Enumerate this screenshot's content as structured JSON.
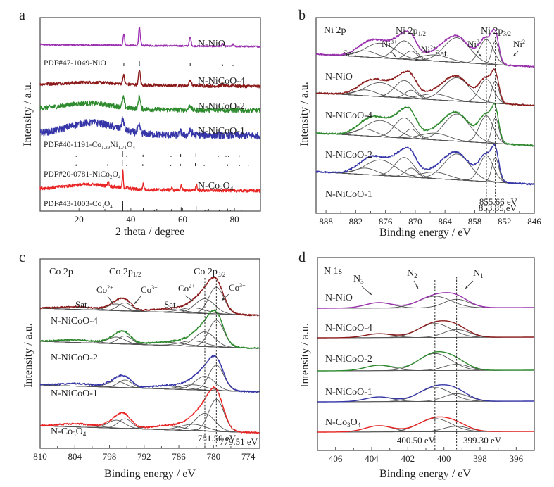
{
  "figure": {
    "panels": [
      "a",
      "b",
      "c",
      "d"
    ]
  },
  "chart_data": [
    {
      "panel": "a",
      "type": "line",
      "title": "",
      "xlabel": "2 theta / degree",
      "ylabel": "Intensity / a.u.",
      "xlim": [
        5,
        90
      ],
      "xticks": [
        20,
        40,
        60,
        80
      ],
      "x_reversed": false,
      "grid": false,
      "colors": {
        "N-NiO": "#9b30b0",
        "N-NiCoO-4": "#8b1a1a",
        "N-NiCoO-2": "#2e8b2e",
        "N-NiCoO-1": "#3636a8",
        "N-Co3O4": "#e82424"
      },
      "series": [
        {
          "name": "N-NiO",
          "label": "N-NiO",
          "color": "#9b30b0",
          "baseline": 0.86,
          "noise": 0.004,
          "hump": {
            "center": 25,
            "width": 10,
            "height": 0.0
          },
          "peaks": [
            [
              37.3,
              0.06,
              0.6
            ],
            [
              43.3,
              0.095,
              0.6
            ],
            [
              44.0,
              0.01,
              0.3
            ],
            [
              51.8,
              0.004,
              0.4
            ],
            [
              62.9,
              0.045,
              0.7
            ],
            [
              75.4,
              0.012,
              0.7
            ],
            [
              79.4,
              0.01,
              0.6
            ]
          ]
        },
        {
          "name": "N-NiCoO-4",
          "label": "N-NiCoO-4",
          "color": "#8b1a1a",
          "baseline": 0.655,
          "noise": 0.008,
          "hump": {
            "center": 25,
            "width": 10,
            "height": 0.012
          },
          "peaks": [
            [
              37.2,
              0.045,
              0.7
            ],
            [
              43.3,
              0.075,
              0.7
            ],
            [
              62.9,
              0.03,
              0.8
            ],
            [
              75.3,
              0.01,
              0.8
            ],
            [
              79.3,
              0.008,
              0.7
            ]
          ]
        },
        {
          "name": "N-NiCoO-2",
          "label": "N-NiCoO-2",
          "color": "#2e8b2e",
          "baseline": 0.53,
          "noise": 0.012,
          "hump": {
            "center": 24,
            "width": 9,
            "height": 0.03
          },
          "peaks": [
            [
              37.1,
              0.05,
              0.8
            ],
            [
              43.3,
              0.065,
              0.8
            ],
            [
              62.8,
              0.022,
              0.9
            ],
            [
              75.2,
              0.008,
              0.8
            ]
          ]
        },
        {
          "name": "N-NiCoO-1",
          "label": "N-NiCoO-1",
          "color": "#3636a8",
          "baseline": 0.4,
          "noise": 0.018,
          "hump": {
            "center": 25,
            "width": 9,
            "height": 0.06
          },
          "peaks": [
            [
              36.9,
              0.055,
              0.9
            ],
            [
              43.2,
              0.035,
              1.0
            ],
            [
              59.2,
              0.015,
              0.8
            ],
            [
              63.0,
              0.02,
              1.2
            ]
          ]
        },
        {
          "name": "N-Co3O4",
          "label": "N-Co3O4",
          "color": "#e82424",
          "baseline": 0.115,
          "noise": 0.008,
          "hump": {
            "center": 24,
            "width": 9,
            "height": 0.025
          },
          "peaks": [
            [
              19.0,
              0.004,
              0.4
            ],
            [
              31.3,
              0.025,
              0.5
            ],
            [
              36.9,
              0.09,
              0.4
            ],
            [
              38.6,
              0.006,
              0.4
            ],
            [
              44.8,
              0.028,
              0.5
            ],
            [
              55.7,
              0.01,
              0.5
            ],
            [
              59.4,
              0.025,
              0.5
            ],
            [
              65.3,
              0.03,
              0.5
            ],
            [
              77.4,
              0.006,
              0.5
            ]
          ]
        }
      ],
      "reference_patterns": [
        {
          "label": "PDF#47-1049-NiO",
          "lines": [
            [
              37.3,
              0.6
            ],
            [
              43.3,
              1.0
            ],
            [
              62.9,
              0.5
            ],
            [
              75.4,
              0.3
            ],
            [
              79.4,
              0.25
            ]
          ]
        },
        {
          "label": "PDF#40-1191-Co1.29Ni1.71O4",
          "lines": [
            [
              18.9,
              0.2
            ],
            [
              31.2,
              0.3
            ],
            [
              36.8,
              1.0
            ],
            [
              38.4,
              0.25
            ],
            [
              44.7,
              0.4
            ],
            [
              55.5,
              0.25
            ],
            [
              59.2,
              0.5
            ],
            [
              65.1,
              0.6
            ],
            [
              73.7,
              0.2
            ],
            [
              76.7,
              0.25
            ],
            [
              77.7,
              0.25
            ],
            [
              81.8,
              0.3
            ]
          ]
        },
        {
          "label": "PDF#20-0781-NiCo2O4",
          "lines": [
            [
              18.9,
              0.3
            ],
            [
              31.1,
              0.35
            ],
            [
              36.7,
              1.0
            ],
            [
              38.4,
              0.25
            ],
            [
              44.6,
              0.35
            ],
            [
              55.4,
              0.2
            ],
            [
              59.1,
              0.4
            ],
            [
              64.9,
              0.5
            ],
            [
              68.3,
              0.2
            ],
            [
              77.3,
              0.3
            ],
            [
              81.9,
              0.25
            ],
            [
              85.3,
              0.2
            ]
          ]
        },
        {
          "label": "PDF#43-1003-Co3O4",
          "lines": [
            [
              36.9,
              1.0
            ],
            [
              38.6,
              0.15
            ],
            [
              44.8,
              0.3
            ],
            [
              49.1,
              0.15
            ],
            [
              55.7,
              0.2
            ],
            [
              59.4,
              0.4
            ],
            [
              65.2,
              0.5
            ],
            [
              68.6,
              0.1
            ],
            [
              69.7,
              0.15
            ],
            [
              74.1,
              0.15
            ],
            [
              77.3,
              0.25
            ],
            [
              78.4,
              0.1
            ],
            [
              82.6,
              0.15
            ]
          ]
        }
      ],
      "annotations": []
    },
    {
      "panel": "b",
      "type": "line",
      "title": "Ni 2p",
      "xlabel": "Binding energy / eV",
      "ylabel": "Intensity / a.u.",
      "xlim": [
        890,
        846
      ],
      "xticks": [
        888,
        882,
        876,
        870,
        864,
        858,
        852,
        846
      ],
      "x_reversed": true,
      "grid": false,
      "fit_components": [
        [
          880.0,
          2.2,
          0.25
        ],
        [
          877.0,
          3.0,
          0.6
        ],
        [
          872.2,
          1.9,
          0.75
        ],
        [
          870.8,
          1.2,
          0.35
        ],
        [
          866.0,
          2.8,
          0.25
        ],
        [
          861.6,
          2.6,
          1.0
        ],
        [
          855.66,
          1.4,
          1.0
        ],
        [
          853.85,
          0.7,
          0.95
        ]
      ],
      "series": [
        {
          "name": "N-NiO",
          "label": "N-NiO",
          "color": "#9b30b0",
          "offset": 3,
          "scale": 1.0
        },
        {
          "name": "N-NiCoO-4",
          "label": "N-NiCoO-4",
          "color": "#8b1a1a",
          "offset": 2,
          "scale": 0.95
        },
        {
          "name": "N-NiCoO-2",
          "label": "N-NiCoO-2",
          "color": "#2e8b2e",
          "offset": 1,
          "scale": 1.1
        },
        {
          "name": "N-NiCoO-1",
          "label": "N-NiCoO-1",
          "color": "#3636a8",
          "offset": 0,
          "scale": 1.05
        }
      ],
      "annotations": [
        {
          "text": "Ni 2p1/2",
          "main": "Ni 2p",
          "sub": "1/2"
        },
        {
          "text": "Ni 2p3/2",
          "main": "Ni 2p",
          "sub": "3/2"
        },
        {
          "text": "Ni3+",
          "main": "Ni",
          "sup": "3+"
        },
        {
          "text": "Ni2+",
          "main": "Ni",
          "sup": "2+"
        },
        {
          "text": "Sat."
        }
      ],
      "reference_lines": [
        {
          "x": 855.66,
          "label": "855.66 eV"
        },
        {
          "x": 853.85,
          "label": "853.85 eV"
        }
      ]
    },
    {
      "panel": "c",
      "type": "line",
      "title": "Co 2p",
      "xlabel": "Binding energy / eV",
      "ylabel": "Intensity / a.u.",
      "xlim": [
        810,
        772
      ],
      "xticks": [
        810,
        804,
        798,
        792,
        786,
        780,
        774
      ],
      "x_reversed": true,
      "grid": false,
      "fit_components": [
        [
          803.5,
          3.0,
          0.1
        ],
        [
          796.8,
          1.5,
          0.25
        ],
        [
          795.3,
          1.2,
          0.3
        ],
        [
          788.0,
          3.0,
          0.12
        ],
        [
          783.5,
          2.2,
          0.2
        ],
        [
          781.5,
          1.7,
          0.55
        ],
        [
          779.51,
          1.3,
          1.0
        ]
      ],
      "series": [
        {
          "name": "N-NiCoO-4",
          "label": "N-NiCoO-4",
          "color": "#8b1a1a",
          "offset": 3,
          "scale": 1.0
        },
        {
          "name": "N-NiCoO-2",
          "label": "N-NiCoO-2",
          "color": "#2e8b2e",
          "offset": 2,
          "scale": 1.0
        },
        {
          "name": "N-NiCoO-1",
          "label": "N-NiCoO-1",
          "color": "#3636a8",
          "offset": 1,
          "scale": 0.95
        },
        {
          "name": "N-Co3O4",
          "label": "N-Co3O4",
          "color": "#e82424",
          "offset": 0,
          "scale": 1.2
        }
      ],
      "annotations": [
        {
          "text": "Co 2p1/2",
          "main": "Co 2p",
          "sub": "1/2"
        },
        {
          "text": "Co 2p3/2",
          "main": "Co 2p",
          "sub": "3/2"
        },
        {
          "text": "Co2+",
          "main": "Co",
          "sup": "2+"
        },
        {
          "text": "Co3+",
          "main": "Co",
          "sup": "3+"
        },
        {
          "text": "Sat."
        }
      ],
      "reference_lines": [
        {
          "x": 781.5,
          "label": "781.50 eV"
        },
        {
          "x": 779.51,
          "label": "779.51 eV"
        }
      ]
    },
    {
      "panel": "d",
      "type": "line",
      "title": "N 1s",
      "xlabel": "Binding energy / eV",
      "ylabel": "Intensity / a.u.",
      "xlim": [
        407,
        395
      ],
      "xticks": [
        406,
        404,
        402,
        400,
        398,
        396
      ],
      "x_reversed": true,
      "grid": false,
      "fit_components": [
        [
          403.6,
          0.75,
          0.35
        ],
        [
          400.5,
          0.9,
          1.0
        ],
        [
          399.3,
          0.7,
          0.6
        ]
      ],
      "series": [
        {
          "name": "N-NiO",
          "label": "N-NiO",
          "color": "#9b30b0",
          "offset": 4,
          "scale": 1.0,
          "weights": [
            0.35,
            0.75,
            0.55
          ]
        },
        {
          "name": "N-NiCoO-4",
          "label": "N-NiCoO-4",
          "color": "#8b1a1a",
          "offset": 3,
          "scale": 1.0,
          "weights": [
            0.25,
            0.9,
            0.5
          ]
        },
        {
          "name": "N-NiCoO-2",
          "label": "N-NiCoO-2",
          "color": "#2e8b2e",
          "offset": 2,
          "scale": 1.0,
          "weights": [
            0.35,
            1.1,
            0.4
          ]
        },
        {
          "name": "N-NiCoO-1",
          "label": "N-NiCoO-1",
          "color": "#3636a8",
          "offset": 1,
          "scale": 1.0,
          "weights": [
            0.3,
            0.9,
            0.5
          ]
        },
        {
          "name": "N-Co3O4",
          "label": "N-Co3O4",
          "color": "#e82424",
          "offset": 0,
          "scale": 1.0,
          "weights": [
            0.4,
            0.85,
            0.35
          ]
        }
      ],
      "annotations": [
        {
          "text": "N1",
          "main": "N",
          "sub": "1"
        },
        {
          "text": "N2",
          "main": "N",
          "sub": "2"
        },
        {
          "text": "N3",
          "main": "N",
          "sub": "3"
        }
      ],
      "reference_lines": [
        {
          "x": 400.5,
          "label": "400.50 eV"
        },
        {
          "x": 399.3,
          "label": "399.30 eV"
        }
      ]
    }
  ]
}
